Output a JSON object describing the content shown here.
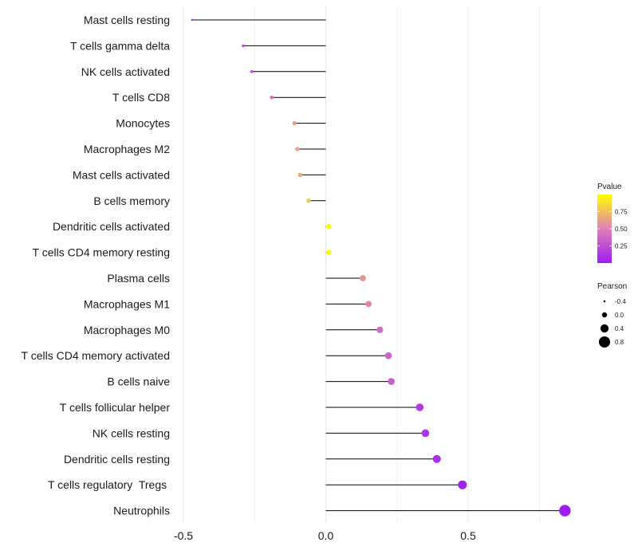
{
  "chart_data": {
    "type": "lollipop",
    "title": "",
    "xlabel": "",
    "ylabel": "",
    "xlim": [
      -0.5,
      0.85
    ],
    "x_ticks": [
      {
        "value": -0.5,
        "label": "-0.5"
      },
      {
        "value": 0.0,
        "label": "0.0"
      },
      {
        "value": 0.5,
        "label": "0.5"
      }
    ],
    "categories": [
      "Mast cells resting",
      "T cells gamma delta",
      "NK cells activated",
      "T cells CD8",
      "Monocytes",
      "Macrophages M2",
      "Mast cells activated",
      "B cells memory",
      "Dendritic cells activated",
      "T cells CD4 memory resting",
      "Plasma cells",
      "Macrophages M1",
      "Macrophages M0",
      "T cells CD4 memory activated",
      "B cells naive",
      "T cells follicular helper",
      "NK cells resting",
      "Dendritic cells resting",
      "T cells regulatory  Tregs ",
      "Neutrophils"
    ],
    "pearson": [
      -0.47,
      -0.29,
      -0.26,
      -0.19,
      -0.11,
      -0.1,
      -0.09,
      -0.06,
      0.01,
      0.01,
      0.13,
      0.15,
      0.19,
      0.22,
      0.23,
      0.33,
      0.35,
      0.39,
      0.48,
      0.84
    ],
    "pvalue": [
      0.05,
      0.22,
      0.27,
      0.42,
      0.62,
      0.65,
      0.68,
      0.8,
      0.97,
      0.97,
      0.58,
      0.52,
      0.4,
      0.35,
      0.33,
      0.15,
      0.12,
      0.09,
      0.03,
      0.001
    ],
    "legend": {
      "color_title": "Pvalue",
      "color_ticks": [
        {
          "value": 0.75,
          "label": "0.75"
        },
        {
          "value": 0.5,
          "label": "0.50"
        },
        {
          "value": 0.25,
          "label": "0.25"
        }
      ],
      "color_range": [
        0.0,
        1.0
      ],
      "size_title": "Pearson",
      "size_items": [
        {
          "value": -0.4,
          "label": "-0.4"
        },
        {
          "value": 0.0,
          "label": "0.0"
        },
        {
          "value": 0.4,
          "label": "0.4"
        },
        {
          "value": 0.8,
          "label": "0.8"
        }
      ],
      "position": "right"
    }
  },
  "colors": {
    "low": "#a01cf5",
    "mid": "#e07fb7",
    "high": "#ffff00",
    "segment": "#000000",
    "grid": "#ebebeb"
  }
}
